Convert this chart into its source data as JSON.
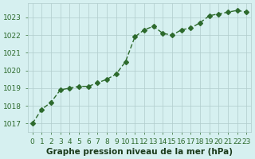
{
  "x": [
    0,
    1,
    2,
    3,
    4,
    5,
    6,
    7,
    8,
    9,
    10,
    11,
    12,
    13,
    14,
    15,
    16,
    17,
    18,
    19,
    20,
    21,
    22,
    23
  ],
  "y": [
    1017.0,
    1017.8,
    1018.2,
    1018.9,
    1019.0,
    1019.1,
    1019.1,
    1019.3,
    1019.5,
    1019.8,
    1020.5,
    1021.9,
    1022.3,
    1022.5,
    1022.1,
    1022.0,
    1022.3,
    1022.4,
    1022.7,
    1023.1,
    1023.2,
    1023.3,
    1023.4,
    1023.3
  ],
  "line_color": "#2d6a2d",
  "marker": "D",
  "marker_size": 3,
  "bg_color": "#d6f0f0",
  "grid_color": "#b0cccc",
  "title": "Graphe pression niveau de la mer (hPa)",
  "title_color": "#1a3a1a",
  "xlabel": "",
  "ylabel": "",
  "ylim": [
    1016.5,
    1023.8
  ],
  "xlim": [
    -0.5,
    23.5
  ],
  "yticks": [
    1017,
    1018,
    1019,
    1020,
    1021,
    1022,
    1023
  ],
  "xticks": [
    0,
    1,
    2,
    3,
    4,
    5,
    6,
    7,
    8,
    9,
    10,
    11,
    12,
    13,
    14,
    15,
    16,
    17,
    18,
    19,
    20,
    21,
    22,
    23
  ],
  "tick_fontsize": 6.5,
  "title_fontsize": 7.5,
  "tick_color": "#2d6a2d"
}
